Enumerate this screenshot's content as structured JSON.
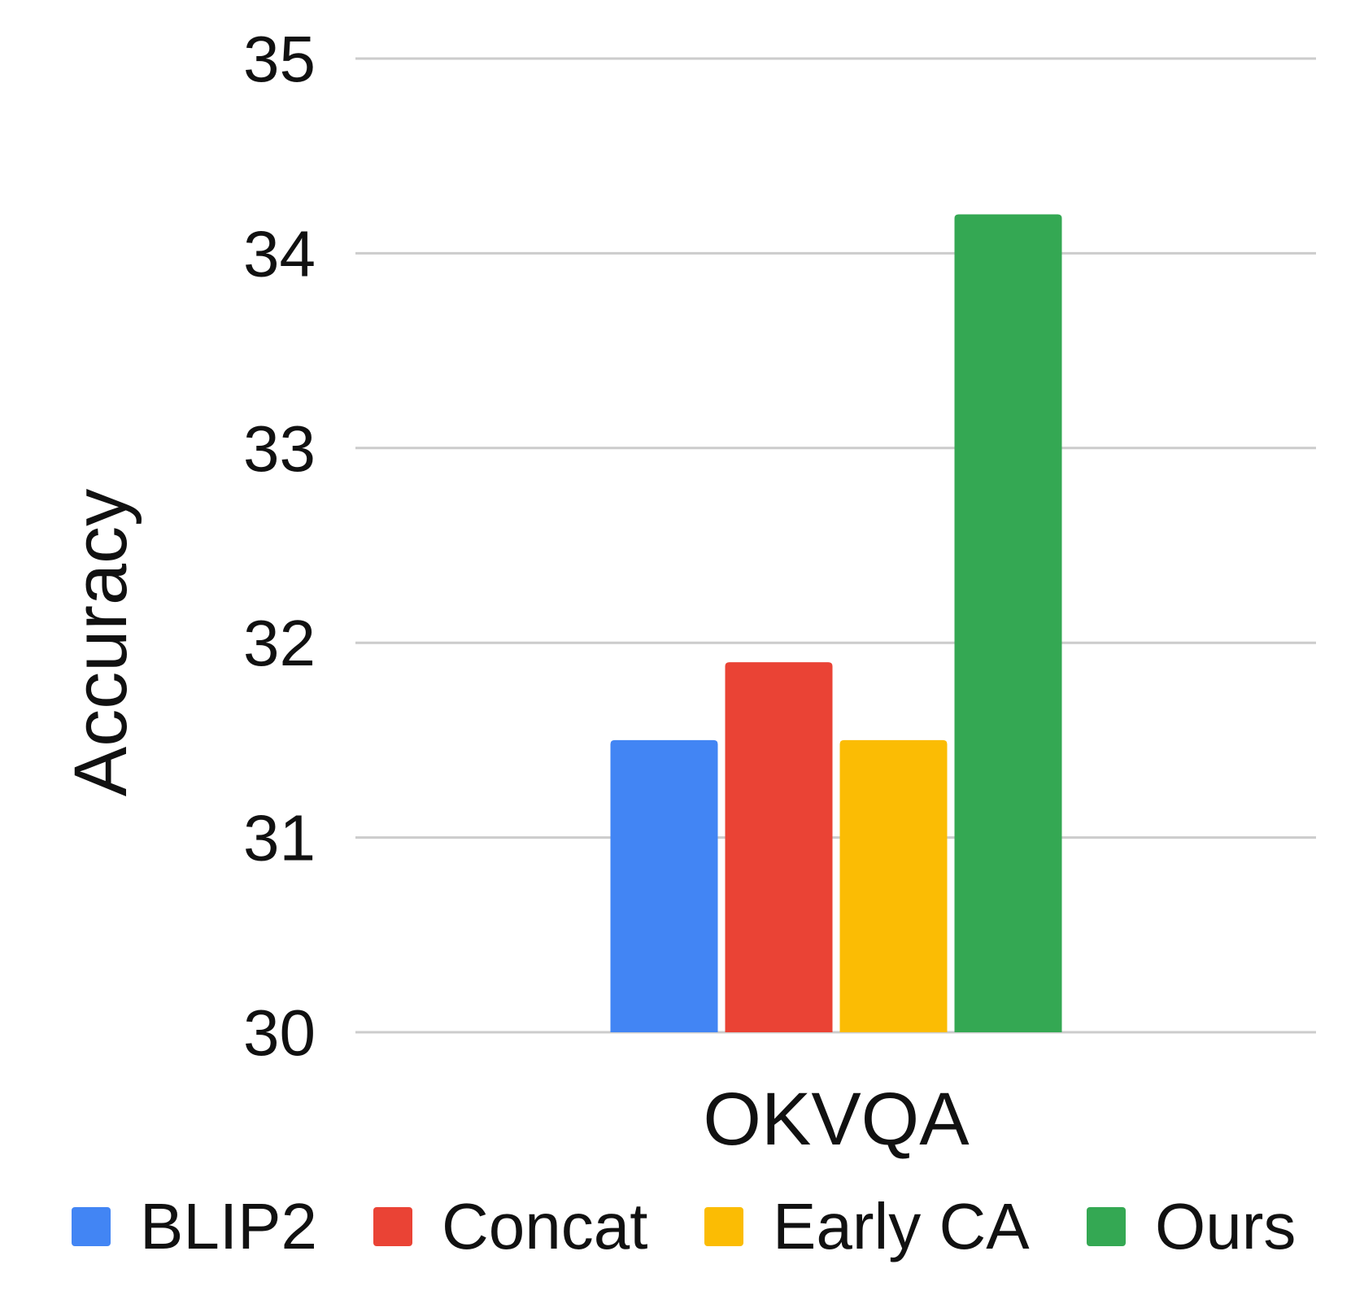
{
  "chart_data": {
    "type": "bar",
    "categories": [
      "OKVQA"
    ],
    "series": [
      {
        "name": "BLIP2",
        "values": [
          31.5
        ],
        "color": "#4285F4"
      },
      {
        "name": "Concat",
        "values": [
          31.9
        ],
        "color": "#EA4335"
      },
      {
        "name": "Early CA",
        "values": [
          31.5
        ],
        "color": "#FBBC04"
      },
      {
        "name": "Ours",
        "values": [
          34.2
        ],
        "color": "#34A853"
      }
    ],
    "title": "",
    "xlabel": "",
    "ylabel": "Accuracy",
    "ylim": [
      30,
      35
    ],
    "yticks": [
      "30",
      "31",
      "32",
      "33",
      "34",
      "35"
    ],
    "grid": true,
    "gridColor": "#cccccc",
    "legend": "bottom"
  }
}
